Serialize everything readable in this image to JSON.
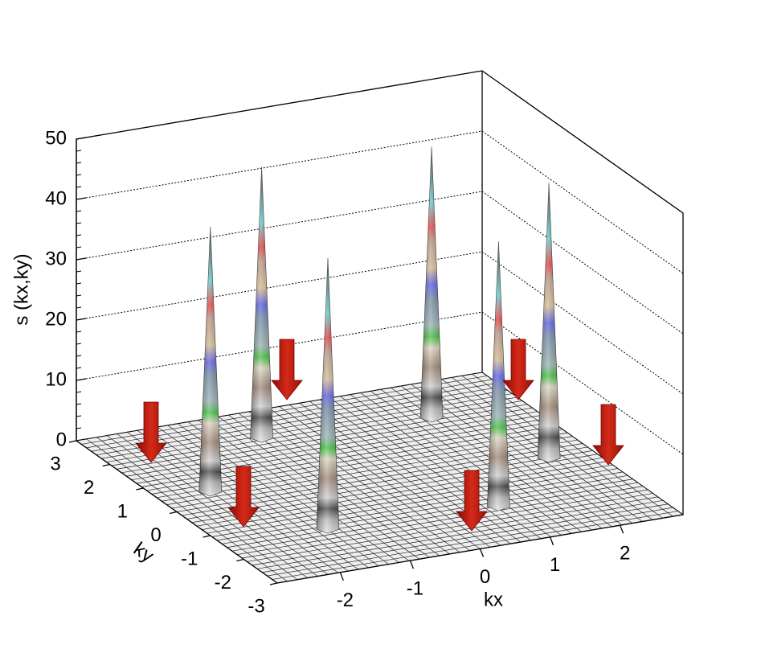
{
  "chart_data": {
    "type": "surface",
    "xlabel": "kx",
    "ylabel": "ky",
    "zlabel": "s (kx,ky)",
    "xlim": [
      -2.9,
      2.9
    ],
    "ylim": [
      -3,
      3
    ],
    "zlim": [
      0,
      50
    ],
    "xticks": [
      -2,
      -1,
      0,
      1,
      2
    ],
    "yticks": [
      -3,
      -2,
      -1,
      0,
      1,
      2,
      3
    ],
    "zticks": [
      0,
      10,
      20,
      30,
      40,
      50
    ],
    "grid": true,
    "x": [
      -0.72,
      1.57,
      -2.19,
      2.27,
      -1.44,
      0.9
    ],
    "y": [
      2.02,
      1.73,
      0.48,
      -0.31,
      -1.46,
      -1.67
    ],
    "z": [
      45,
      45,
      44,
      45.6,
      45,
      44
    ]
  }
}
